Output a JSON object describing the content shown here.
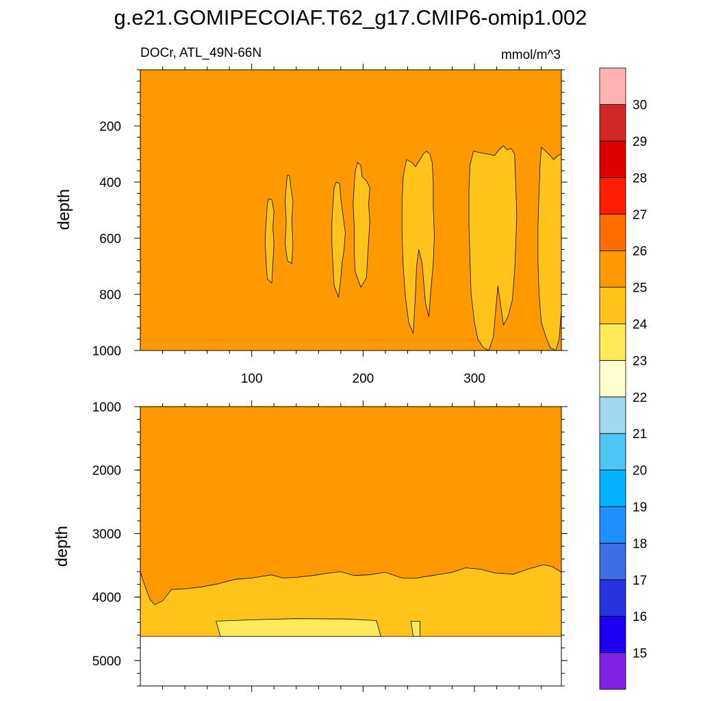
{
  "title": "g.e21.GOMIPECOIAF.T62_g17.CMIP6-omip1.002",
  "left_string": "DOCr, ATL_49N-66N",
  "right_string": "mmol/m^3",
  "colors": {
    "background_fill": "#ff9900",
    "band_24_25": "#ffc31a",
    "band_23_24": "#ffe957",
    "missing": "#ffffff",
    "contour_line": "#000000"
  },
  "chart_data": [
    {
      "type": "heatmap",
      "panel": "upper",
      "ylabel": "depth",
      "xlim": [
        0,
        378
      ],
      "ylim": [
        0,
        1000
      ],
      "y_reversed": true,
      "x_ticks": [
        100,
        200,
        300
      ],
      "y_ticks": [
        200,
        400,
        600,
        800,
        1000
      ],
      "filled_regions": [
        {
          "level": "24-25",
          "polygon": [
            [
              115,
              460
            ],
            [
              118,
              462
            ],
            [
              120,
              505
            ],
            [
              119,
              560
            ],
            [
              120,
              620
            ],
            [
              119,
              690
            ],
            [
              118,
              760
            ],
            [
              114,
              745
            ],
            [
              113,
              690
            ],
            [
              112,
              610
            ],
            [
              113,
              540
            ],
            [
              114,
              480
            ]
          ]
        },
        {
          "level": "24-25",
          "polygon": [
            [
              132,
              375
            ],
            [
              134,
              378
            ],
            [
              135,
              415
            ],
            [
              137,
              470
            ],
            [
              136,
              540
            ],
            [
              137,
              620
            ],
            [
              136,
              690
            ],
            [
              132,
              680
            ],
            [
              130,
              620
            ],
            [
              131,
              540
            ],
            [
              130,
              470
            ],
            [
              131,
              415
            ]
          ]
        },
        {
          "level": "24-25",
          "polygon": [
            [
              176,
              400
            ],
            [
              179,
              405
            ],
            [
              180,
              460
            ],
            [
              182,
              520
            ],
            [
              184,
              580
            ],
            [
              183,
              640
            ],
            [
              181,
              690
            ],
            [
              180,
              740
            ],
            [
              178,
              810
            ],
            [
              174,
              770
            ],
            [
              173,
              700
            ],
            [
              172,
              620
            ],
            [
              172,
              540
            ],
            [
              173,
              470
            ],
            [
              174,
              420
            ]
          ]
        },
        {
          "level": "24-25",
          "polygon": [
            [
              195,
              330
            ],
            [
              198,
              340
            ],
            [
              199,
              380
            ],
            [
              203,
              395
            ],
            [
              206,
              420
            ],
            [
              205,
              480
            ],
            [
              206,
              540
            ],
            [
              205,
              610
            ],
            [
              204,
              670
            ],
            [
              203,
              740
            ],
            [
              198,
              775
            ],
            [
              193,
              720
            ],
            [
              192,
              650
            ],
            [
              192,
              560
            ],
            [
              191,
              480
            ],
            [
              192,
              410
            ],
            [
              193,
              360
            ]
          ]
        },
        {
          "level": "24-25",
          "polygon": [
            [
              239,
              320
            ],
            [
              244,
              330
            ],
            [
              247,
              345
            ],
            [
              251,
              320
            ],
            [
              254,
              300
            ],
            [
              257,
              290
            ],
            [
              260,
              300
            ],
            [
              262,
              330
            ],
            [
              263,
              400
            ],
            [
              263,
              490
            ],
            [
              264,
              590
            ],
            [
              263,
              690
            ],
            [
              261,
              780
            ],
            [
              259,
              880
            ],
            [
              256,
              830
            ],
            [
              253,
              690
            ],
            [
              250,
              640
            ],
            [
              248,
              700
            ],
            [
              247,
              800
            ],
            [
              245,
              940
            ],
            [
              241,
              900
            ],
            [
              238,
              810
            ],
            [
              236,
              700
            ],
            [
              235,
              590
            ],
            [
              235,
              470
            ],
            [
              236,
              380
            ]
          ]
        },
        {
          "level": "24-25",
          "polygon": [
            [
              299,
              290
            ],
            [
              305,
              295
            ],
            [
              312,
              300
            ],
            [
              318,
              305
            ],
            [
              322,
              285
            ],
            [
              326,
              270
            ],
            [
              329,
              285
            ],
            [
              333,
              280
            ],
            [
              336,
              300
            ],
            [
              337,
              400
            ],
            [
              338,
              520
            ],
            [
              337,
              630
            ],
            [
              336,
              720
            ],
            [
              334,
              820
            ],
            [
              330,
              880
            ],
            [
              326,
              910
            ],
            [
              324,
              850
            ],
            [
              321,
              770
            ],
            [
              319,
              860
            ],
            [
              317,
              950
            ],
            [
              313,
              1000
            ],
            [
              308,
              990
            ],
            [
              303,
              960
            ],
            [
              300,
              900
            ],
            [
              297,
              800
            ],
            [
              296,
              680
            ],
            [
              295,
              550
            ],
            [
              295,
              430
            ],
            [
              296,
              340
            ]
          ]
        },
        {
          "level": "24-25",
          "polygon": [
            [
              360,
              275
            ],
            [
              364,
              290
            ],
            [
              368,
              305
            ],
            [
              371,
              320
            ],
            [
              375,
              305
            ],
            [
              378,
              300
            ],
            [
              378,
              860
            ],
            [
              376,
              960
            ],
            [
              373,
              1000
            ],
            [
              368,
              990
            ],
            [
              364,
              950
            ],
            [
              360,
              900
            ],
            [
              358,
              800
            ],
            [
              357,
              680
            ],
            [
              357,
              560
            ],
            [
              358,
              430
            ],
            [
              359,
              330
            ]
          ]
        }
      ]
    },
    {
      "type": "heatmap",
      "panel": "lower",
      "ylabel": "depth",
      "xlim": [
        0,
        378
      ],
      "ylim": [
        1000,
        5400
      ],
      "y_reversed": true,
      "y_ticks": [
        1000,
        2000,
        3000,
        4000,
        5000
      ],
      "missing_below_depth": 4620,
      "boundary_25_line": [
        [
          0,
          3600
        ],
        [
          4,
          3820
        ],
        [
          9,
          4050
        ],
        [
          13,
          4120
        ],
        [
          20,
          4060
        ],
        [
          28,
          3880
        ],
        [
          40,
          3870
        ],
        [
          55,
          3840
        ],
        [
          70,
          3790
        ],
        [
          85,
          3720
        ],
        [
          100,
          3700
        ],
        [
          118,
          3650
        ],
        [
          128,
          3700
        ],
        [
          140,
          3690
        ],
        [
          155,
          3660
        ],
        [
          170,
          3620
        ],
        [
          180,
          3600
        ],
        [
          192,
          3660
        ],
        [
          205,
          3650
        ],
        [
          220,
          3610
        ],
        [
          235,
          3700
        ],
        [
          248,
          3700
        ],
        [
          262,
          3660
        ],
        [
          280,
          3610
        ],
        [
          292,
          3540
        ],
        [
          305,
          3560
        ],
        [
          318,
          3620
        ],
        [
          335,
          3640
        ],
        [
          348,
          3560
        ],
        [
          362,
          3490
        ],
        [
          370,
          3520
        ],
        [
          378,
          3610
        ]
      ],
      "filled_regions": [
        {
          "level": "23-24",
          "polygon": [
            [
              68,
              4380
            ],
            [
              72,
              4620
            ],
            [
              216,
              4620
            ],
            [
              212,
              4370
            ],
            [
              185,
              4345
            ],
            [
              140,
              4340
            ],
            [
              105,
              4355
            ]
          ]
        },
        {
          "level": "23-24",
          "polygon": [
            [
              243,
              4380
            ],
            [
              251,
              4380
            ],
            [
              251,
              4620
            ],
            [
              245,
              4620
            ]
          ]
        }
      ]
    },
    {
      "type": "colorbar",
      "colors": [
        "#7f22e6",
        "#1d00f2",
        "#2634e0",
        "#3d6ee6",
        "#1e90ff",
        "#00b2ff",
        "#4dc6f4",
        "#a1d7ef",
        "#ffffd0",
        "#ffe957",
        "#ffc31a",
        "#ff9900",
        "#ff6d00",
        "#ff1f00",
        "#e10000",
        "#d22727",
        "#ffb3b3"
      ],
      "tick_labels": [
        "15",
        "16",
        "17",
        "18",
        "19",
        "20",
        "21",
        "22",
        "23",
        "24",
        "25",
        "26",
        "27",
        "28",
        "29",
        "30"
      ]
    }
  ]
}
